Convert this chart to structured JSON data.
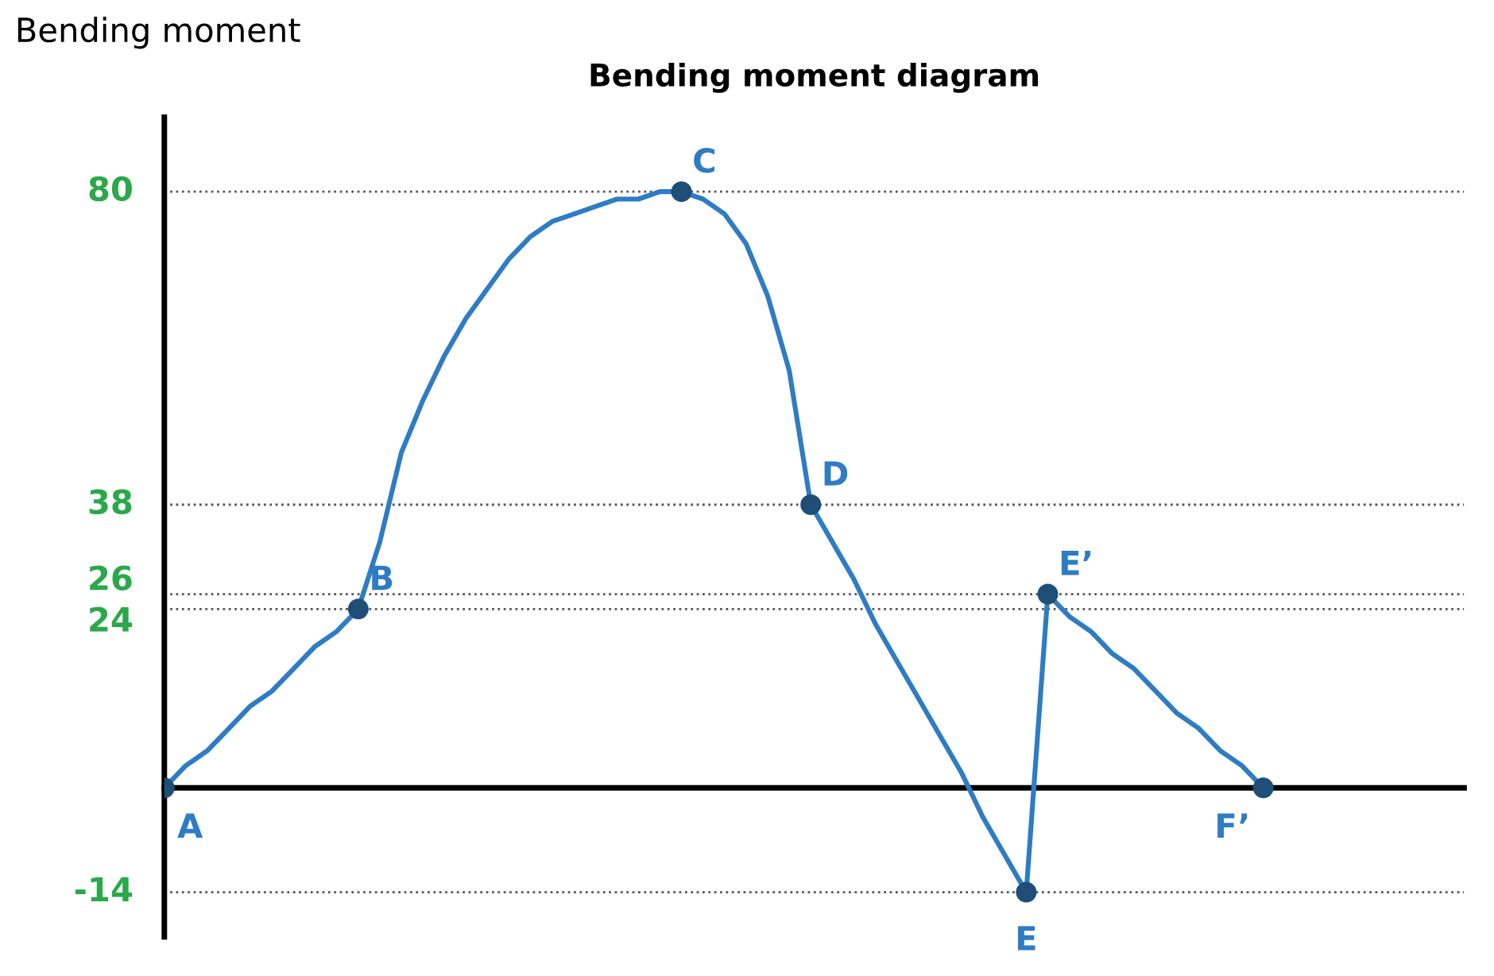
{
  "chart_data": {
    "type": "line",
    "title": "Bending moment diagram",
    "ylabel": "Bending moment",
    "categories": [
      null,
      null,
      null,
      null,
      null,
      null,
      null,
      null,
      null,
      null,
      null,
      null,
      null,
      null,
      null,
      null,
      null,
      null,
      null,
      null,
      null,
      null,
      null,
      null,
      null,
      null,
      null,
      null,
      null,
      null,
      null,
      null,
      null,
      null,
      null,
      null,
      null,
      null,
      null,
      null,
      null,
      null,
      null,
      null,
      null,
      null,
      null,
      null,
      null,
      null,
      null,
      null
    ],
    "series": [
      {
        "color": "#2e7cc4",
        "marker": "none",
        "values": [
          0,
          3,
          5,
          8,
          11,
          13,
          16,
          19,
          21,
          24,
          33,
          45,
          52,
          58,
          63,
          67,
          71,
          74,
          76,
          77,
          78,
          79,
          79,
          80,
          80,
          79,
          77,
          73,
          66,
          56,
          38,
          33,
          28,
          22,
          17,
          12,
          7,
          2,
          -4,
          -9,
          -14,
          26,
          23,
          21,
          18,
          16,
          13,
          10,
          8,
          5,
          3,
          0
        ]
      },
      {
        "type": "scatter",
        "color": "#1f4e79",
        "marker": "circle",
        "values": [
          0,
          null,
          null,
          null,
          null,
          null,
          null,
          null,
          null,
          24,
          null,
          null,
          null,
          null,
          null,
          null,
          null,
          null,
          null,
          null,
          null,
          null,
          null,
          null,
          80,
          null,
          null,
          null,
          null,
          null,
          38,
          null,
          null,
          null,
          null,
          null,
          null,
          null,
          null,
          null,
          -14,
          26,
          null,
          null,
          null,
          null,
          null,
          null,
          null,
          null,
          null,
          0
        ],
        "value_labels": [
          "A",
          null,
          null,
          null,
          null,
          null,
          null,
          null,
          null,
          "B",
          null,
          null,
          null,
          null,
          null,
          null,
          null,
          null,
          null,
          null,
          null,
          null,
          null,
          null,
          "C",
          null,
          null,
          null,
          null,
          null,
          "D",
          null,
          null,
          null,
          null,
          null,
          null,
          null,
          null,
          null,
          "E",
          "E’",
          null,
          null,
          null,
          null,
          null,
          null,
          null,
          null,
          null,
          "F’"
        ]
      }
    ],
    "ylim": [
      -20,
      90
    ],
    "yticks": [
      -14,
      24,
      26,
      38,
      80
    ],
    "tick_labels": "y",
    "grid": "y",
    "line_style": "solid"
  }
}
